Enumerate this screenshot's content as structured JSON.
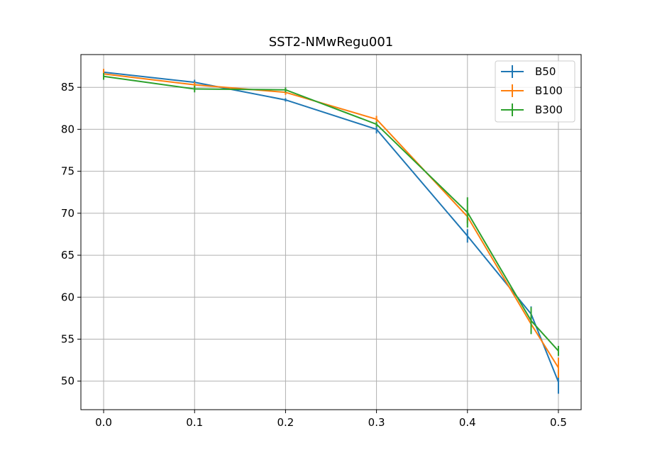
{
  "chart_data": {
    "type": "line",
    "title": "SST2-NMwRegu001",
    "xlabel": "",
    "ylabel": "",
    "x": [
      0.0,
      0.1,
      0.2,
      0.3,
      0.4,
      0.47,
      0.5
    ],
    "xlim": [
      -0.025,
      0.525
    ],
    "ylim": [
      46.6,
      88.9
    ],
    "xticks": [
      0.0,
      0.1,
      0.2,
      0.3,
      0.4,
      0.5
    ],
    "xtick_labels": [
      "0.0",
      "0.1",
      "0.2",
      "0.3",
      "0.4",
      "0.5"
    ],
    "yticks": [
      50,
      55,
      60,
      65,
      70,
      75,
      80,
      85
    ],
    "ytick_labels": [
      "50",
      "55",
      "60",
      "65",
      "70",
      "75",
      "80",
      "85"
    ],
    "grid": true,
    "legend_position": "top-right",
    "series": [
      {
        "name": "B50",
        "color": "#1f77b4",
        "values": [
          86.8,
          85.6,
          83.5,
          80.0,
          67.3,
          58.0,
          49.9
        ],
        "errors": [
          0.3,
          0.3,
          0.2,
          0.5,
          0.8,
          0.9,
          1.4
        ]
      },
      {
        "name": "B100",
        "color": "#ff7f0e",
        "values": [
          86.6,
          85.3,
          84.4,
          81.2,
          69.6,
          56.8,
          51.6
        ],
        "errors": [
          0.6,
          0.3,
          0.3,
          0.4,
          0.8,
          0.9,
          1.2
        ]
      },
      {
        "name": "B300",
        "color": "#2ca02c",
        "values": [
          86.3,
          84.8,
          84.7,
          80.6,
          70.1,
          57.2,
          53.6
        ],
        "errors": [
          0.4,
          0.4,
          0.3,
          0.3,
          1.8,
          1.6,
          0.6
        ]
      }
    ]
  }
}
